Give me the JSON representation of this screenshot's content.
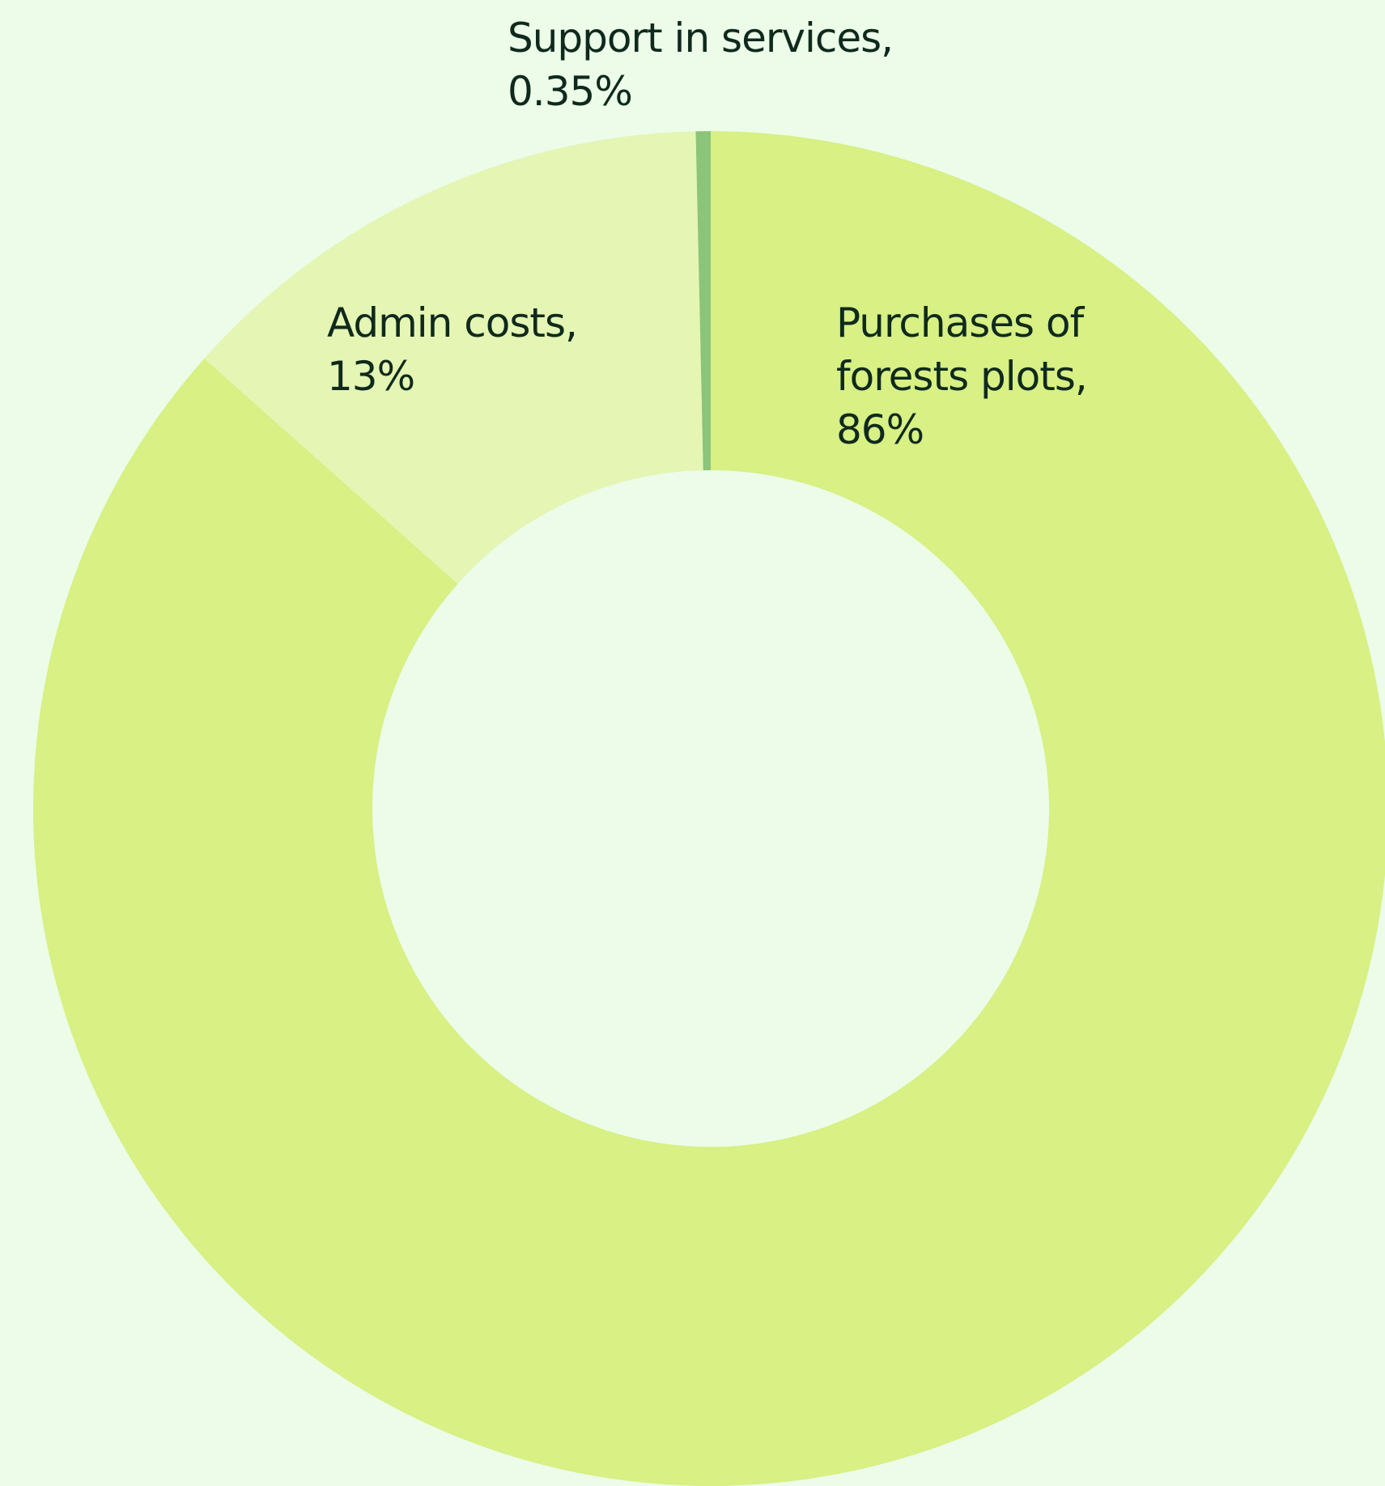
{
  "chart_data": {
    "type": "donut",
    "categories": [
      "Purchases of forests plots,",
      "Admin costs,",
      "Support in services,"
    ],
    "values": [
      86,
      13,
      0.35
    ],
    "value_labels": [
      "86%",
      "13%",
      "0.35%"
    ],
    "colors": [
      "#d8f084",
      "#e5f5b4",
      "#8cc47a"
    ]
  }
}
